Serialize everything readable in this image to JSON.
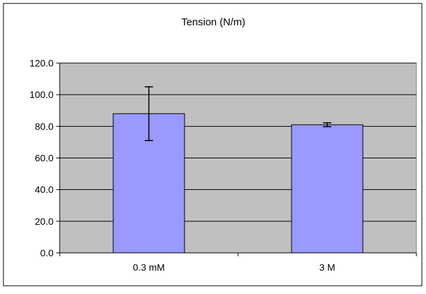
{
  "chart_data": {
    "type": "bar",
    "title": "Tension (N/m)",
    "categories": [
      "0.3 mM",
      "3 M"
    ],
    "values": [
      88.0,
      81.0
    ],
    "error_low": [
      71.0,
      79.8
    ],
    "error_high": [
      105.0,
      82.2
    ],
    "ylim": [
      0,
      120
    ],
    "yticks": [
      "0.0",
      "20.0",
      "40.0",
      "60.0",
      "80.0",
      "100.0",
      "120.0"
    ],
    "grid": true,
    "legend": "none",
    "bar_color": "#9999ff",
    "plot_bg": "#c0c0c0"
  }
}
